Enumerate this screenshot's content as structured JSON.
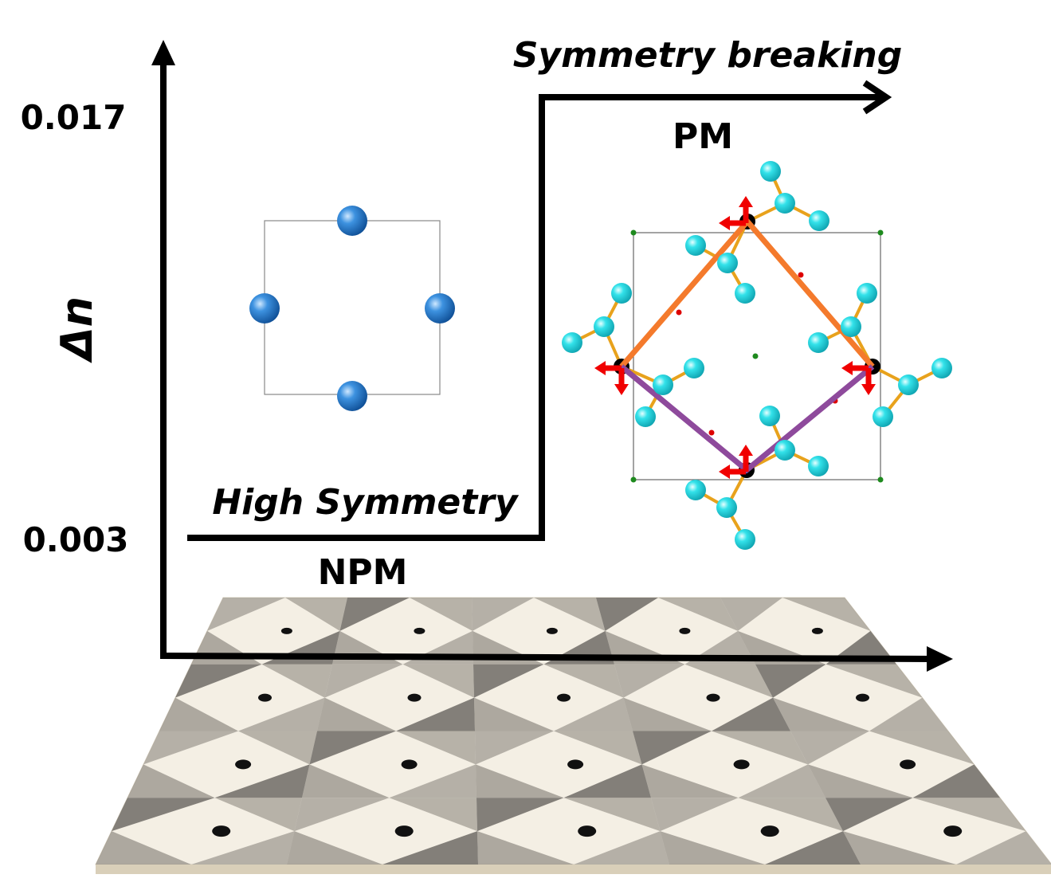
{
  "y_axis": {
    "label": "Δn",
    "tick_high": "0.017",
    "tick_low": "0.003"
  },
  "high_state": {
    "title": "Symmetry breaking",
    "phase": "PM"
  },
  "low_state": {
    "title": "High Symmetry",
    "phase": "NPM"
  },
  "colors": {
    "npm_atom": "#2a7fd4",
    "molecule_atom": "#2fe0e8",
    "bond": "#e8a21c",
    "displacement_arrow": "#f00000",
    "upper_bonds": "#f47a2c",
    "lower_bonds": "#8e4a9c",
    "cell_corner": "#1e8a1e"
  }
}
